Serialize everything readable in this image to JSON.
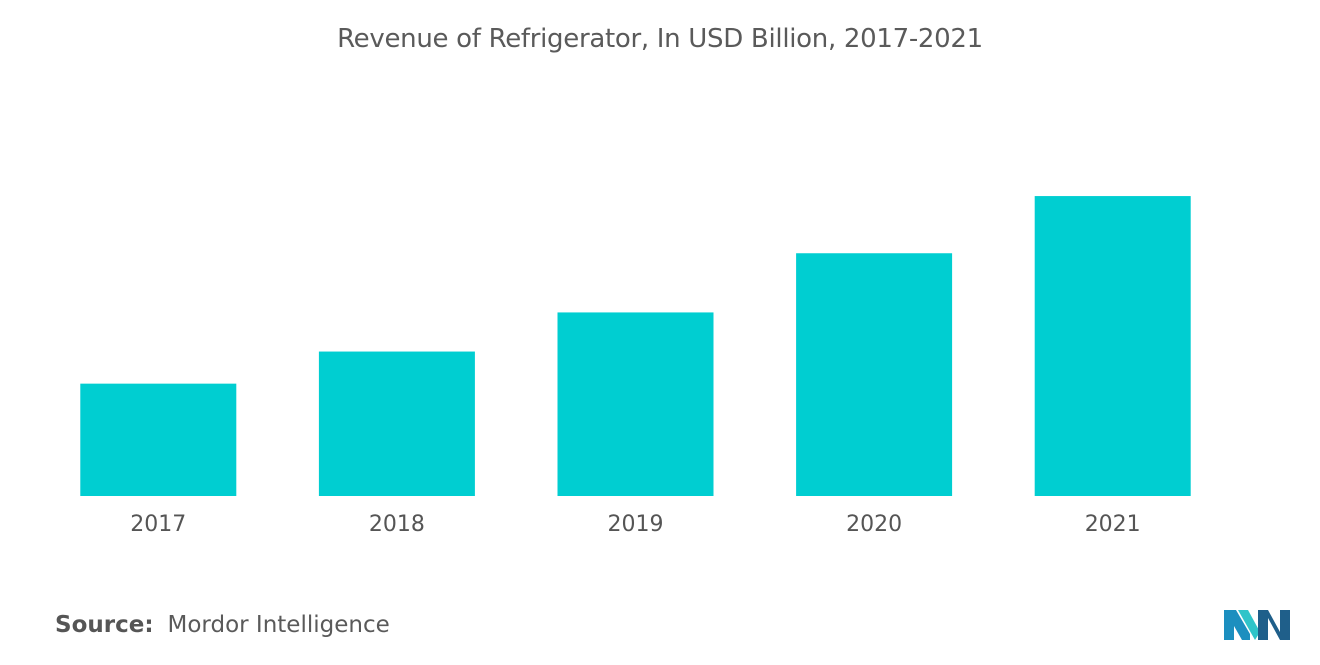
{
  "chart_data": {
    "type": "bar",
    "title": "Revenue of Refrigerator, In USD Billion, 2017-2021",
    "categories": [
      "2017",
      "2018",
      "2019",
      "2020",
      "2021"
    ],
    "values": [
      112,
      144,
      183,
      242,
      299
    ],
    "ylim": [
      0,
      320
    ],
    "bar_color": "#00ced1",
    "grid": false,
    "legend": "none"
  },
  "source": {
    "label": "Source:",
    "text": "Mordor Intelligence"
  },
  "logo": {
    "icon": "mordor-intelligence-logo",
    "colors": [
      "#1c8fbf",
      "#2fc4c9",
      "#1f5f8a"
    ]
  }
}
